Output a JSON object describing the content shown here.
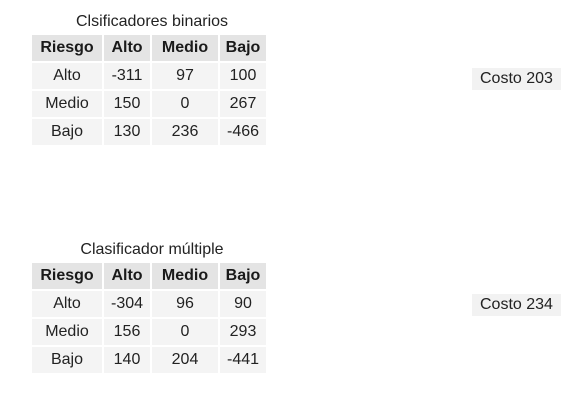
{
  "table1": {
    "caption": "Clsificadores binarios",
    "headers": [
      "Riesgo",
      "Alto",
      "Medio",
      "Bajo"
    ],
    "rows": [
      [
        "Alto",
        "-311",
        "97",
        "100"
      ],
      [
        "Medio",
        "150",
        "0",
        "267"
      ],
      [
        "Bajo",
        "130",
        "236",
        "-466"
      ]
    ],
    "cost_label": "Costo 203"
  },
  "table2": {
    "caption": "Clasificador múltiple",
    "headers": [
      "Riesgo",
      "Alto",
      "Medio",
      "Bajo"
    ],
    "rows": [
      [
        "Alto",
        "-304",
        "96",
        "90"
      ],
      [
        "Medio",
        "156",
        "0",
        "293"
      ],
      [
        "Bajo",
        "140",
        "204",
        "-441"
      ]
    ],
    "cost_label": "Costo 234"
  }
}
